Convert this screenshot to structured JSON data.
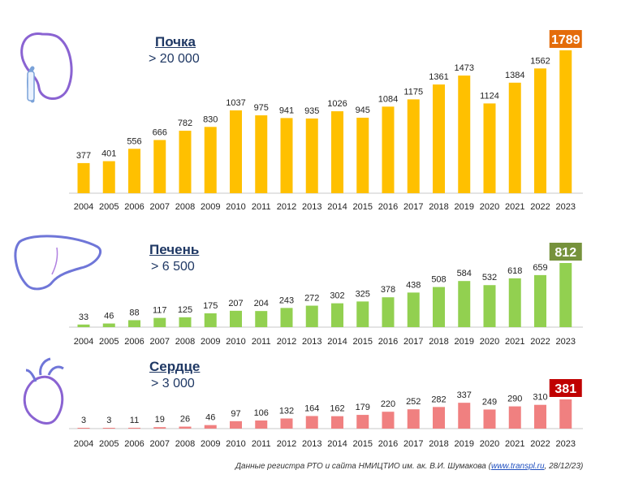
{
  "colors": {
    "kidney": "#FFC000",
    "kidney_highlight": "#E46C0A",
    "liver": "#92D050",
    "liver_highlight": "#76923C",
    "heart": "#F08080",
    "heart_highlight": "#C00000",
    "title_text": "#1F3864"
  },
  "icons": [
    "kidney-icon",
    "liver-icon",
    "heart-icon"
  ],
  "source": {
    "text": "Данные регистра РТО и сайта НМИЦТИО  им. ак. В.И. Шумакова (",
    "link": "www.transpl.ru",
    "date": ",  28/12/23)"
  },
  "chart_data": [
    {
      "type": "bar",
      "title": "Почка",
      "subtitle": "> 20 000",
      "categories": [
        "2004",
        "2005",
        "2006",
        "2007",
        "2008",
        "2009",
        "2010",
        "2011",
        "2012",
        "2013",
        "2014",
        "2015",
        "2016",
        "2017",
        "2018",
        "2019",
        "2020",
        "2021",
        "2022",
        "2023"
      ],
      "values": [
        377,
        401,
        556,
        666,
        782,
        830,
        1037,
        975,
        941,
        935,
        1026,
        945,
        1084,
        1175,
        1361,
        1473,
        1124,
        1384,
        1562,
        1789
      ],
      "highlight_last": true,
      "ylim": [
        0,
        1789
      ]
    },
    {
      "type": "bar",
      "title": "Печень",
      "subtitle": "> 6 500",
      "categories": [
        "2004",
        "2005",
        "2006",
        "2007",
        "2008",
        "2009",
        "2010",
        "2011",
        "2012",
        "2013",
        "2014",
        "2015",
        "2016",
        "2017",
        "2018",
        "2019",
        "2020",
        "2021",
        "2022",
        "2023"
      ],
      "values": [
        33,
        46,
        88,
        117,
        125,
        175,
        207,
        204,
        243,
        272,
        302,
        325,
        378,
        438,
        508,
        584,
        532,
        618,
        659,
        812
      ],
      "highlight_last": true,
      "ylim": [
        0,
        812
      ]
    },
    {
      "type": "bar",
      "title": "Сердце",
      "subtitle": "> 3 000",
      "categories": [
        "2004",
        "2005",
        "2006",
        "2007",
        "2008",
        "2009",
        "2010",
        "2011",
        "2012",
        "2013",
        "2014",
        "2015",
        "2016",
        "2017",
        "2018",
        "2019",
        "2020",
        "2021",
        "2022",
        "2023"
      ],
      "values": [
        3,
        3,
        11,
        19,
        26,
        46,
        97,
        106,
        132,
        164,
        162,
        179,
        220,
        252,
        282,
        337,
        249,
        290,
        310,
        381
      ],
      "highlight_last": true,
      "ylim": [
        0,
        381
      ]
    }
  ]
}
